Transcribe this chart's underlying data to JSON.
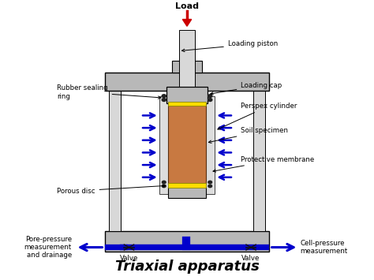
{
  "title": "Triaxial apparatus",
  "title_fontsize": 13,
  "bg_color": "#ffffff",
  "gray_color": "#b8b8b8",
  "dark_gray": "#808080",
  "light_gray": "#d8d8d8",
  "blue_arrow_color": "#0000cc",
  "red_color": "#cc0000",
  "soil_color": "#c87941",
  "yellow_color": "#ffdd00",
  "labels": {
    "load": "Load",
    "loading_piston": "Loading piston",
    "rubber_sealing": "Rubber sealing\nring",
    "porous_disc": "Porous disc",
    "pore_pressure": "Pore-pressure\nmeasurement\nand drainage",
    "loading_cap": "Loading cap",
    "perspex_cylinder": "Perspex cylinder",
    "soil_specimen": "Soil specimen",
    "protective_membrane": "Protective membrane",
    "valve_left": "Valve",
    "valve_right": "Valve",
    "cell_pressure": "Cell-pressure\nmeasurement"
  }
}
